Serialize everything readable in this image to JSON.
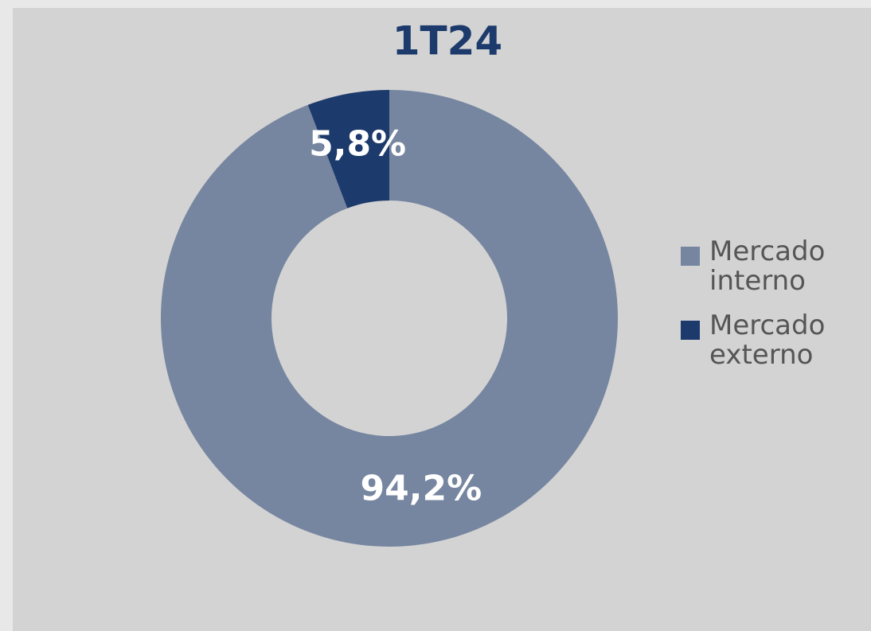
{
  "chart_data": {
    "type": "pie",
    "title": "1T24",
    "categories": [
      "Mercado interno",
      "Mercado externo"
    ],
    "values": [
      94.2,
      5.8
    ],
    "value_labels": [
      "94,2%",
      "5,8%"
    ],
    "colors": [
      "#7686a0",
      "#1c3a6b"
    ],
    "legend": "right"
  }
}
